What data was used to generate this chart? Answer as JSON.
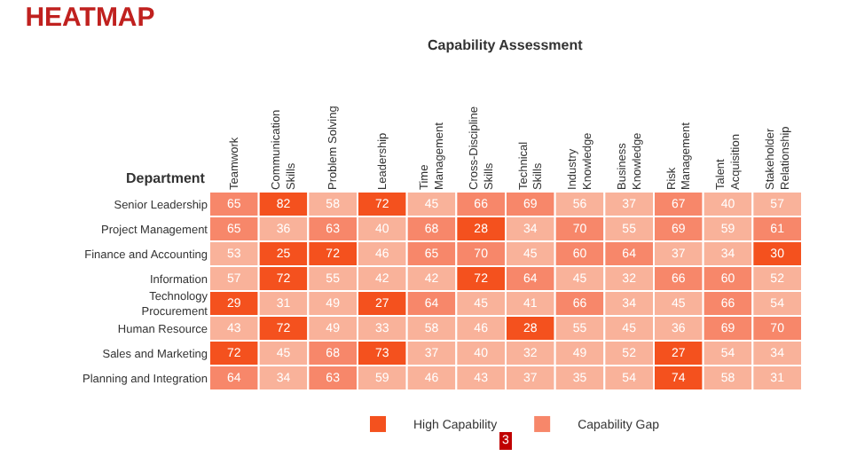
{
  "chart_data": {
    "type": "heatmap",
    "title": "HEATMAP",
    "xlabel": "Capability Assessment",
    "ylabel": "Department",
    "categories": [
      "Teamwork",
      "Communication\nSkills",
      "Problem Solving",
      "Leadership",
      "Time\nManagement",
      "Cross-Discipline\nSkills",
      "Technical\nSkills",
      "Industry\nKnowledge",
      "Business\nKnowledge",
      "Risk\nManagement",
      "Talent\nAcquisition",
      "Stakeholder\nRelationship"
    ],
    "y_categories": [
      "Senior Leadership",
      "Project Management",
      "Finance and Accounting",
      "Information",
      "Technology\nProcurement",
      "Human Resource",
      "Sales and Marketing",
      "Planning and Integration"
    ],
    "cells": [
      [
        65,
        82,
        58,
        72,
        45,
        66,
        69,
        56,
        37,
        67,
        40,
        57
      ],
      [
        65,
        36,
        63,
        40,
        68,
        28,
        34,
        70,
        55,
        69,
        59,
        61
      ],
      [
        53,
        25,
        72,
        46,
        65,
        70,
        45,
        60,
        64,
        37,
        34,
        30
      ],
      [
        57,
        72,
        55,
        42,
        42,
        72,
        64,
        45,
        32,
        66,
        60,
        52
      ],
      [
        29,
        31,
        49,
        27,
        64,
        45,
        41,
        66,
        34,
        45,
        66,
        54
      ],
      [
        43,
        72,
        49,
        33,
        58,
        46,
        28,
        55,
        45,
        36,
        69,
        70
      ],
      [
        72,
        45,
        68,
        73,
        37,
        40,
        32,
        49,
        52,
        27,
        54,
        34
      ],
      [
        64,
        34,
        63,
        59,
        46,
        43,
        37,
        35,
        54,
        74,
        58,
        31
      ]
    ],
    "colors": [
      [
        "#f7876a",
        "#f4511e",
        "#f9b29a",
        "#f4511e",
        "#f9b29a",
        "#f7876a",
        "#f7876a",
        "#f9b29a",
        "#f9b29a",
        "#f7876a",
        "#f9b29a",
        "#f9b29a"
      ],
      [
        "#f7876a",
        "#f9b29a",
        "#f7876a",
        "#f9b29a",
        "#f7876a",
        "#f4511e",
        "#f9b29a",
        "#f7876a",
        "#f9b29a",
        "#f7876a",
        "#f9b29a",
        "#f7876a"
      ],
      [
        "#f9b29a",
        "#f4511e",
        "#f4511e",
        "#f9b29a",
        "#f7876a",
        "#f7876a",
        "#f9b29a",
        "#f7876a",
        "#f7876a",
        "#f9b29a",
        "#f9b29a",
        "#f4511e"
      ],
      [
        "#f9b29a",
        "#f4511e",
        "#f9b29a",
        "#f9b29a",
        "#f9b29a",
        "#f4511e",
        "#f7876a",
        "#f9b29a",
        "#f9b29a",
        "#f7876a",
        "#f7876a",
        "#f9b29a"
      ],
      [
        "#f4511e",
        "#f9b29a",
        "#f9b29a",
        "#f4511e",
        "#f7876a",
        "#f9b29a",
        "#f9b29a",
        "#f7876a",
        "#f9b29a",
        "#f9b29a",
        "#f7876a",
        "#f9b29a"
      ],
      [
        "#f9b29a",
        "#f4511e",
        "#f9b29a",
        "#f9b29a",
        "#f9b29a",
        "#f9b29a",
        "#f4511e",
        "#f9b29a",
        "#f9b29a",
        "#f9b29a",
        "#f7876a",
        "#f7876a"
      ],
      [
        "#f4511e",
        "#f9b29a",
        "#f7876a",
        "#f4511e",
        "#f9b29a",
        "#f9b29a",
        "#f9b29a",
        "#f9b29a",
        "#f9b29a",
        "#f4511e",
        "#f9b29a",
        "#f9b29a"
      ],
      [
        "#f7876a",
        "#f9b29a",
        "#f7876a",
        "#f9b29a",
        "#f9b29a",
        "#f9b29a",
        "#f9b29a",
        "#f9b29a",
        "#f9b29a",
        "#f4511e",
        "#f9b29a",
        "#f9b29a"
      ]
    ],
    "series": [
      {
        "name": "High Capability",
        "color": "#f4511e",
        "values": [
          null,
          null,
          null,
          null,
          null,
          null,
          null,
          null,
          null,
          null,
          null,
          null
        ]
      },
      {
        "name": "Capability Gap",
        "color": "#f7876a",
        "values": [
          null,
          null,
          null,
          null,
          null,
          null,
          null,
          null,
          null,
          null,
          null,
          null
        ]
      }
    ],
    "legend": "bottom",
    "data_labels": true,
    "annotations": [
      "3"
    ]
  }
}
